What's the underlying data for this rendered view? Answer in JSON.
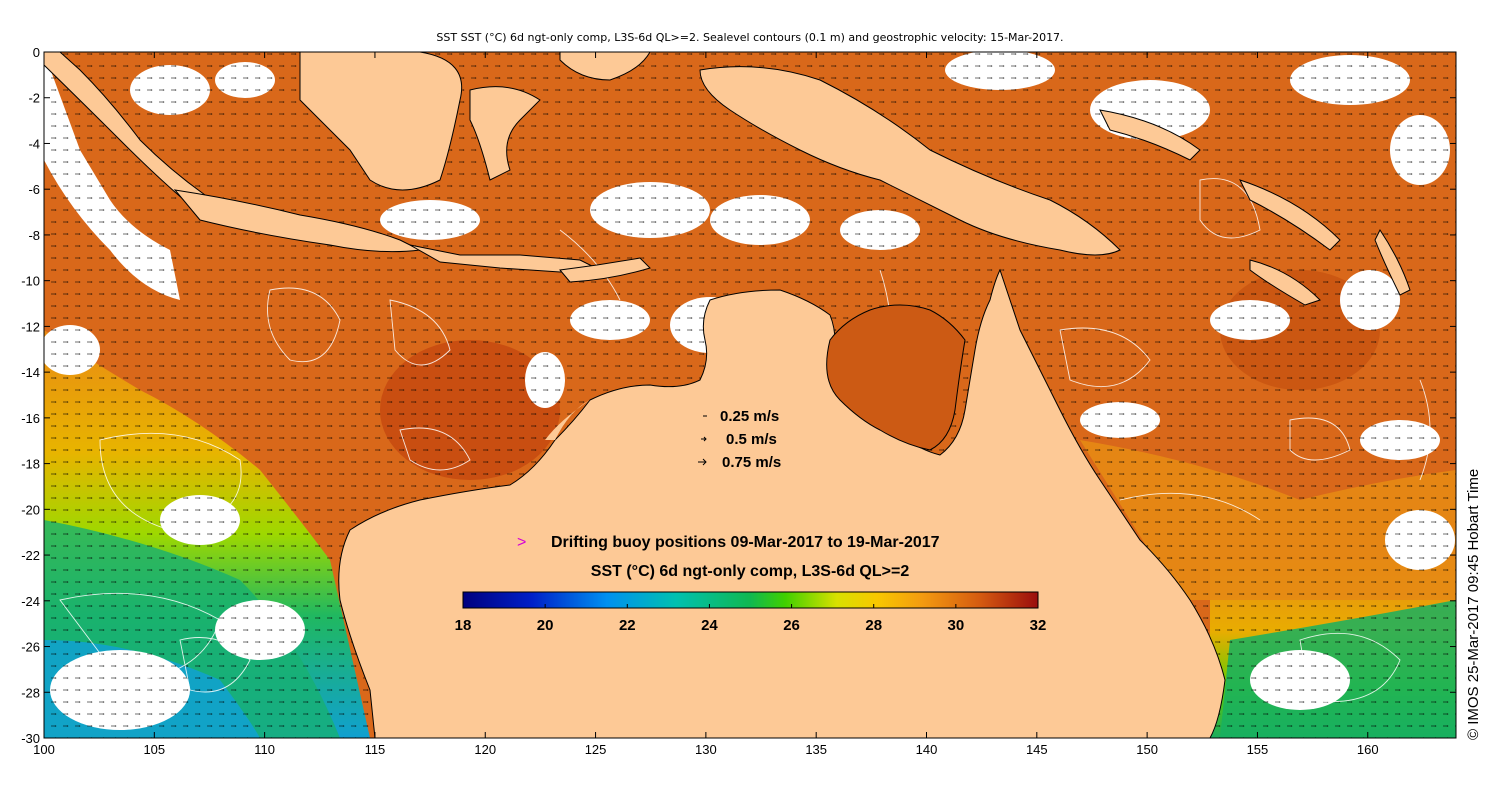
{
  "header": {
    "title": "SST SST (°C) 6d ngt-only comp, L3S-6d QL>=2. Sealevel contours (0.1 m) and geostrophic velocity: 15-Mar-2017."
  },
  "side_label": "© IMOS 25-Mar-2017 09:45 Hobart Time",
  "map": {
    "x_ticks": [
      "100",
      "105",
      "110",
      "115",
      "120",
      "125",
      "130",
      "135",
      "140",
      "145",
      "150",
      "155",
      "160"
    ],
    "y_ticks": [
      "0",
      "-2",
      "-4",
      "-6",
      "-8",
      "-10",
      "-12",
      "-14",
      "-16",
      "-18",
      "-20",
      "-22",
      "-24",
      "-26",
      "-28",
      "-30"
    ],
    "lon_range": [
      100,
      164
    ],
    "lat_range": [
      -30,
      0
    ],
    "colors": {
      "land": "#fdc996",
      "missing": "#ffffff",
      "coast": "#000000",
      "contour": "#ffffff"
    }
  },
  "velocity_legend": {
    "items": [
      {
        "label": "0.25 m/s"
      },
      {
        "label": "0.5 m/s"
      },
      {
        "label": "0.75 m/s"
      }
    ]
  },
  "buoy_legend": {
    "marker": ">",
    "marker_color": "#d600d6",
    "label": "Drifting buoy positions 09-Mar-2017 to 19-Mar-2017"
  },
  "colorbar": {
    "title": "SST (°C) 6d ngt-only comp, L3S-6d QL>=2",
    "ticks": [
      "18",
      "20",
      "22",
      "24",
      "26",
      "28",
      "30",
      "32"
    ],
    "range": [
      18,
      32
    ]
  }
}
